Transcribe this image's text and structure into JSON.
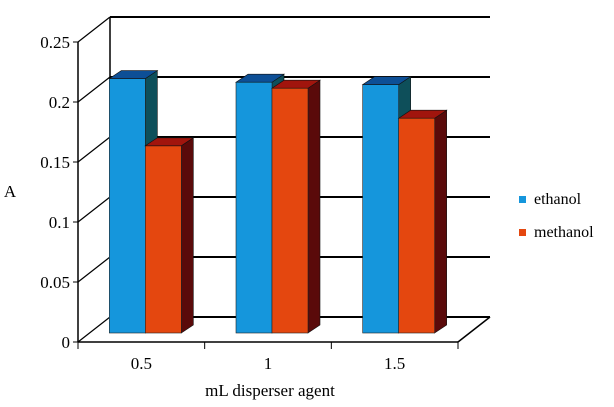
{
  "chart_data": {
    "type": "bar",
    "title": "",
    "xlabel": "mL disperser agent",
    "ylabel": "A",
    "categories": [
      "0.5",
      "1",
      "1.5"
    ],
    "ylim": [
      0,
      0.25
    ],
    "yticks": [
      "0",
      "0.05",
      "0.1",
      "0.15",
      "0.2",
      "0.25"
    ],
    "grid": true,
    "legend_position": "right",
    "three_d": true,
    "series": [
      {
        "name": "ethanol",
        "values": [
          0.212,
          0.209,
          0.207
        ],
        "color": "#1596dc",
        "top_color": "#0d4f96",
        "side_color": "#0e4f5a"
      },
      {
        "name": "methanol",
        "values": [
          0.156,
          0.204,
          0.179
        ],
        "color": "#e4470f",
        "top_color": "#a1150d",
        "side_color": "#5a0a0a"
      }
    ]
  }
}
